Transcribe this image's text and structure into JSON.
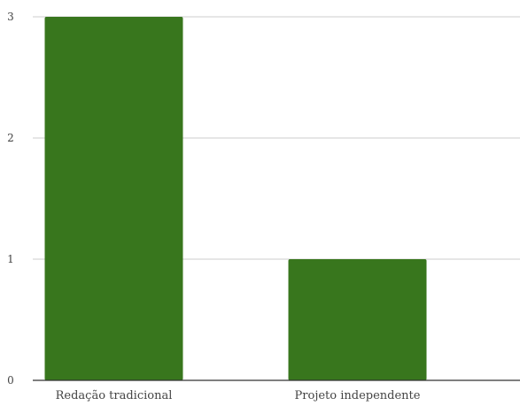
{
  "chart_data": {
    "type": "bar",
    "categories": [
      "Redação tradicional",
      "Projeto independente"
    ],
    "values": [
      3,
      1
    ],
    "title": "",
    "xlabel": "",
    "ylabel": "",
    "ylim": [
      0,
      3
    ],
    "yticks": [
      0,
      1,
      2,
      3
    ],
    "grid": true,
    "legend": "none",
    "bar_color": "#38761d"
  }
}
